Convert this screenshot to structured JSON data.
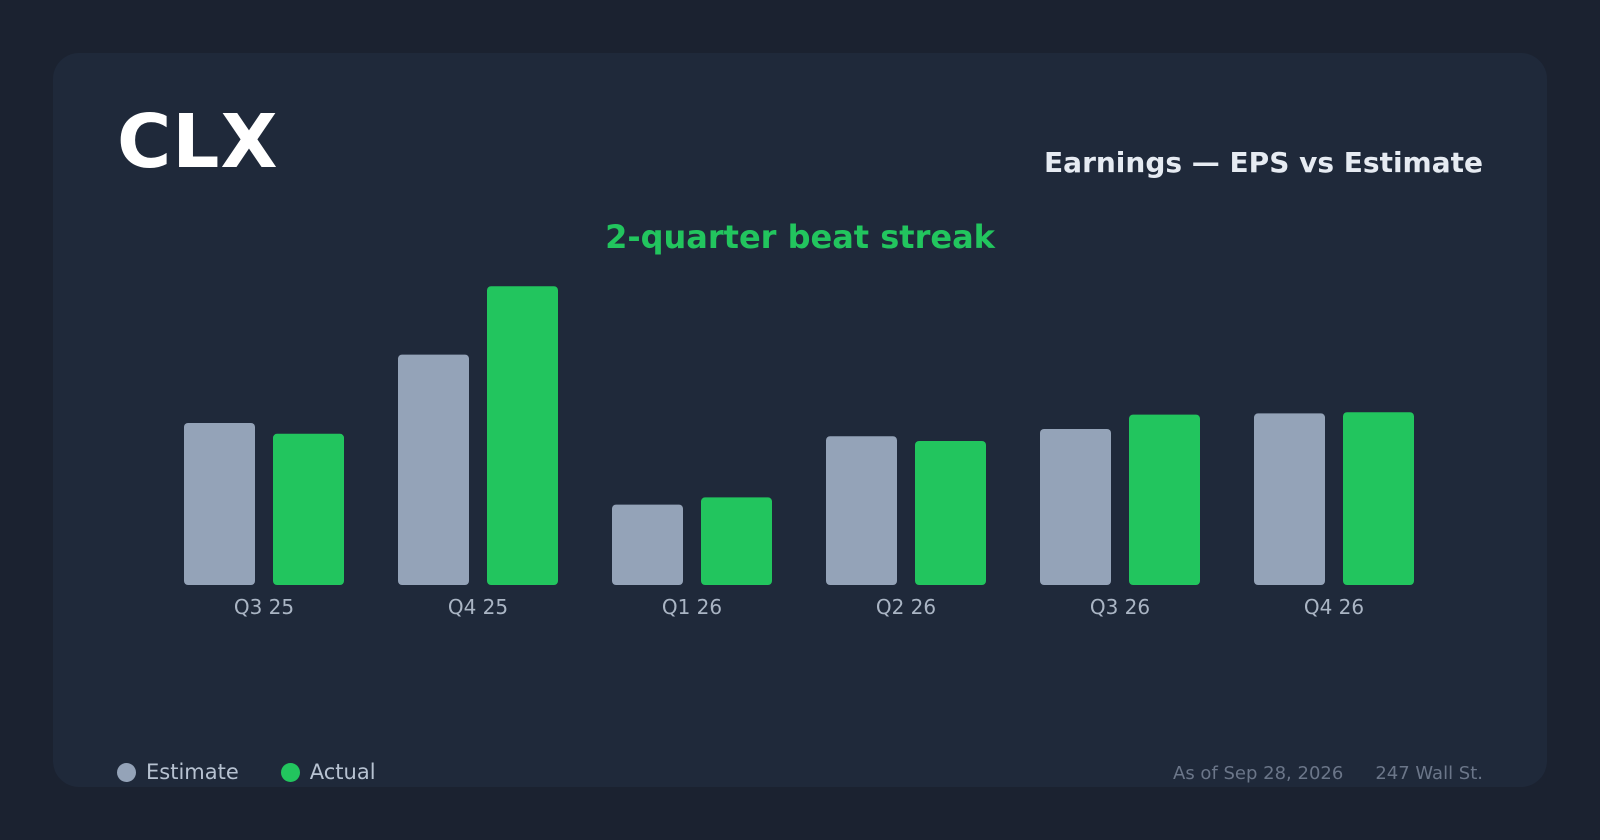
{
  "ticker": "CLX",
  "heading": "Earnings — EPS vs Estimate",
  "streak": "2-quarter beat streak",
  "legend": {
    "estimate_label": "Estimate",
    "actual_label": "Actual"
  },
  "footer": {
    "as_of": "As of Sep 28, 2026",
    "source": "247 Wall St."
  },
  "colors": {
    "estimate": "#94a3b8",
    "actual": "#22c55e",
    "streak": "#22c55e"
  },
  "chart_data": {
    "type": "bar",
    "categories": [
      "Q3 25",
      "Q4 25",
      "Q1 26",
      "Q2 26",
      "Q3 26",
      "Q4 26"
    ],
    "series": [
      {
        "name": "Estimate",
        "values": [
          1.35,
          1.92,
          0.67,
          1.24,
          1.3,
          1.43
        ]
      },
      {
        "name": "Actual",
        "values": [
          1.26,
          2.49,
          0.73,
          1.2,
          1.42,
          1.44
        ]
      }
    ],
    "ylim": [
      0,
      2.5
    ],
    "grid": false,
    "legend_position": "bottom-left"
  }
}
